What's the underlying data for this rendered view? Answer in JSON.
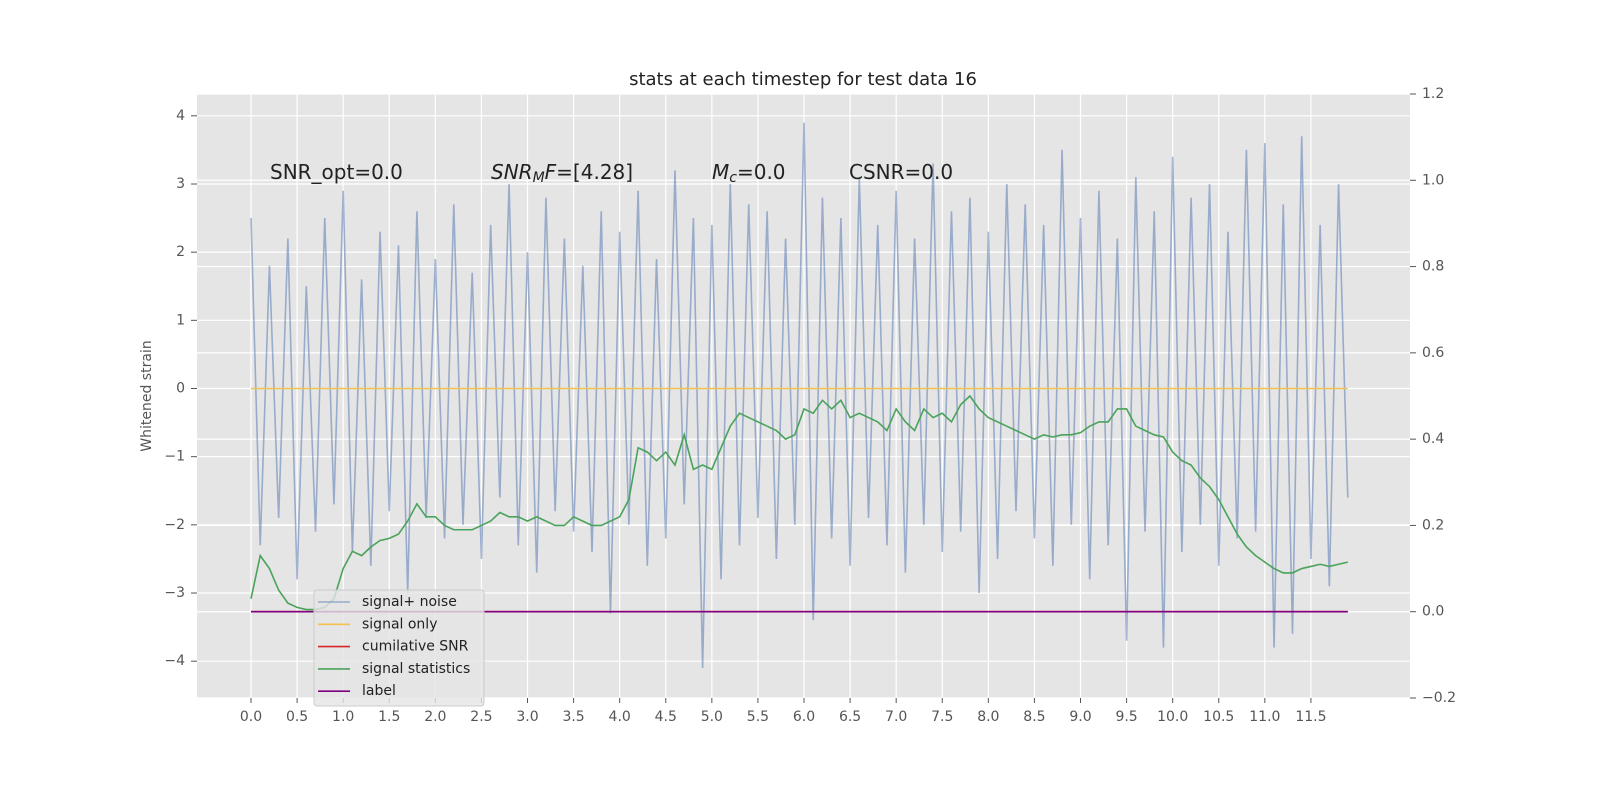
{
  "chart_data": {
    "type": "line",
    "title": "stats at each timestep for test data 16",
    "y_label": "Whitened strain",
    "grid": true,
    "legend_loc": "lower left",
    "annotations": [
      {
        "parts": [
          {
            "text": "SNR_opt=0.0",
            "style": "normal"
          }
        ]
      },
      {
        "parts": [
          {
            "text": "SNR",
            "style": "italic"
          },
          {
            "text": "M",
            "style": "sub"
          },
          {
            "text": "F",
            "style": "italic"
          },
          {
            "text": "=[4.28]",
            "style": "normal"
          }
        ]
      },
      {
        "parts": [
          {
            "text": "M",
            "style": "italic"
          },
          {
            "text": "c",
            "style": "sub"
          },
          {
            "text": "=0.0",
            "style": "normal"
          }
        ]
      },
      {
        "parts": [
          {
            "text": "CSNR=0.0",
            "style": "normal"
          }
        ]
      }
    ],
    "xlim": [
      -0.586,
      12.575
    ],
    "ylim": [
      -4.54,
      4.32
    ],
    "y2lim": [
      -0.2,
      1.2
    ],
    "xticks": [
      {
        "value": 0,
        "label": "0.0"
      },
      {
        "value": 0.5,
        "label": "0.5"
      },
      {
        "value": 1,
        "label": "1.0"
      },
      {
        "value": 1.5,
        "label": "1.5"
      },
      {
        "value": 2,
        "label": "2.0"
      },
      {
        "value": 2.5,
        "label": "2.5"
      },
      {
        "value": 3,
        "label": "3.0"
      },
      {
        "value": 3.5,
        "label": "3.5"
      },
      {
        "value": 4,
        "label": "4.0"
      },
      {
        "value": 4.5,
        "label": "4.5"
      },
      {
        "value": 5,
        "label": "5.0"
      },
      {
        "value": 5.5,
        "label": "5.5"
      },
      {
        "value": 6,
        "label": "6.0"
      },
      {
        "value": 6.5,
        "label": "6.5"
      },
      {
        "value": 7,
        "label": "7.0"
      },
      {
        "value": 7.5,
        "label": "7.5"
      },
      {
        "value": 8,
        "label": "8.0"
      },
      {
        "value": 8.5,
        "label": "8.5"
      },
      {
        "value": 9,
        "label": "9.0"
      },
      {
        "value": 9.5,
        "label": "9.5"
      },
      {
        "value": 10,
        "label": "10.0"
      },
      {
        "value": 10.5,
        "label": "10.5"
      },
      {
        "value": 11,
        "label": "11.0"
      },
      {
        "value": 11.5,
        "label": "11.5"
      }
    ],
    "yticks": [
      {
        "value": -4,
        "label": "−4"
      },
      {
        "value": -3,
        "label": "−3"
      },
      {
        "value": -2,
        "label": "−2"
      },
      {
        "value": -1,
        "label": "−1"
      },
      0,
      1,
      2,
      3,
      4
    ],
    "y2ticks": [
      {
        "value": -0.2,
        "label": "−0.2"
      },
      {
        "value": 0,
        "label": "0.0"
      },
      {
        "value": 0.2,
        "label": "0.2"
      },
      {
        "value": 0.4,
        "label": "0.4"
      },
      {
        "value": 0.6,
        "label": "0.6"
      },
      {
        "value": 0.8,
        "label": "0.8"
      },
      {
        "value": 1,
        "label": "1.0"
      },
      {
        "value": 1.2,
        "label": "1.2"
      }
    ],
    "x": [
      0,
      0.1,
      0.2,
      0.3,
      0.4,
      0.5,
      0.6,
      0.7,
      0.8,
      0.9,
      1,
      1.1,
      1.2,
      1.3,
      1.4,
      1.5,
      1.6,
      1.7,
      1.8,
      1.9,
      2,
      2.1,
      2.2,
      2.3,
      2.4,
      2.5,
      2.6,
      2.7,
      2.8,
      2.9,
      3,
      3.1,
      3.2,
      3.3,
      3.4,
      3.5,
      3.6,
      3.7,
      3.8,
      3.9,
      4,
      4.1,
      4.2,
      4.3,
      4.4,
      4.5,
      4.6,
      4.7,
      4.8,
      4.9,
      5,
      5.1,
      5.2,
      5.3,
      5.4,
      5.5,
      5.6,
      5.7,
      5.8,
      5.9,
      6,
      6.1,
      6.2,
      6.3,
      6.4,
      6.5,
      6.6,
      6.7,
      6.8,
      6.9,
      7,
      7.1,
      7.2,
      7.3,
      7.4,
      7.5,
      7.6,
      7.7,
      7.8,
      7.9,
      8,
      8.1,
      8.2,
      8.3,
      8.4,
      8.5,
      8.6,
      8.7,
      8.8,
      8.9,
      9,
      9.1,
      9.2,
      9.3,
      9.4,
      9.5,
      9.6,
      9.7,
      9.8,
      9.9,
      10,
      10.1,
      10.2,
      10.3,
      10.4,
      10.5,
      10.6,
      10.7,
      10.8,
      10.9,
      11,
      11.1,
      11.2,
      11.3,
      11.4,
      11.5,
      11.6,
      11.7,
      11.8,
      11.9
    ],
    "series": [
      {
        "name": "signal+ noise",
        "color": "#4c72b0",
        "opacity": 0.5,
        "values": [
          2.5,
          -2.3,
          1.8,
          -1.9,
          2.2,
          -2.8,
          1.5,
          -2.1,
          2.5,
          -1.7,
          2.9,
          -2.4,
          1.6,
          -2.6,
          2.3,
          -1.8,
          2.1,
          -3.0,
          2.6,
          -1.9,
          1.9,
          -2.2,
          2.7,
          -2.0,
          1.7,
          -2.5,
          2.4,
          -1.6,
          3.0,
          -2.3,
          2.0,
          -2.7,
          2.8,
          -1.8,
          2.2,
          -2.1,
          1.8,
          -2.4,
          2.6,
          -3.3,
          2.3,
          -2.0,
          2.9,
          -2.6,
          1.9,
          -2.2,
          3.2,
          -1.7,
          2.5,
          -4.1,
          2.4,
          -2.8,
          3.0,
          -2.3,
          2.7,
          -1.9,
          2.6,
          -2.5,
          2.2,
          -2.0,
          3.9,
          -3.4,
          2.8,
          -2.2,
          2.5,
          -2.6,
          3.1,
          -1.9,
          2.4,
          -2.3,
          2.9,
          -2.7,
          2.2,
          -2.0,
          3.3,
          -2.4,
          2.6,
          -2.1,
          2.8,
          -3.0,
          2.3,
          -2.5,
          3.0,
          -1.8,
          2.7,
          -2.2,
          2.4,
          -2.6,
          3.5,
          -2.0,
          2.5,
          -2.8,
          2.9,
          -2.3,
          2.2,
          -3.7,
          3.1,
          -2.1,
          2.6,
          -3.8,
          3.4,
          -2.4,
          2.8,
          -2.0,
          3.0,
          -2.6,
          2.3,
          -2.2,
          3.5,
          -2.1,
          3.6,
          -3.8,
          2.7,
          -3.6,
          3.7,
          -2.5,
          2.4,
          -2.9,
          3.0,
          -1.6
        ]
      },
      {
        "name": "signal only",
        "color": "#f2c14e",
        "values": [
          0,
          0,
          0,
          0,
          0,
          0,
          0,
          0,
          0,
          0,
          0,
          0,
          0,
          0,
          0,
          0,
          0,
          0,
          0,
          0,
          0,
          0,
          0,
          0,
          0,
          0,
          0,
          0,
          0,
          0,
          0,
          0,
          0,
          0,
          0,
          0,
          0,
          0,
          0,
          0,
          0,
          0,
          0,
          0,
          0,
          0,
          0,
          0,
          0,
          0,
          0,
          0,
          0,
          0,
          0,
          0,
          0,
          0,
          0,
          0,
          0,
          0,
          0,
          0,
          0,
          0,
          0,
          0,
          0,
          0,
          0,
          0,
          0,
          0,
          0,
          0,
          0,
          0,
          0,
          0,
          0,
          0,
          0,
          0,
          0,
          0,
          0,
          0,
          0,
          0,
          0,
          0,
          0,
          0,
          0,
          0,
          0,
          0,
          0,
          0,
          0,
          0,
          0,
          0,
          0,
          0,
          0,
          0,
          0,
          0,
          0,
          0,
          0,
          0,
          0,
          0,
          0,
          0,
          0,
          0
        ]
      },
      {
        "name": "cumilative SNR",
        "color": "#d62728",
        "axis": "y2",
        "values": [
          0,
          0,
          0,
          0,
          0,
          0,
          0,
          0,
          0,
          0,
          0,
          0,
          0,
          0,
          0,
          0,
          0,
          0,
          0,
          0,
          0,
          0,
          0,
          0,
          0,
          0,
          0,
          0,
          0,
          0,
          0,
          0,
          0,
          0,
          0,
          0,
          0,
          0,
          0,
          0,
          0,
          0,
          0,
          0,
          0,
          0,
          0,
          0,
          0,
          0,
          0,
          0,
          0,
          0,
          0,
          0,
          0,
          0,
          0,
          0,
          0,
          0,
          0,
          0,
          0,
          0,
          0,
          0,
          0,
          0,
          0,
          0,
          0,
          0,
          0,
          0,
          0,
          0,
          0,
          0,
          0,
          0,
          0,
          0,
          0,
          0,
          0,
          0,
          0,
          0,
          0,
          0,
          0,
          0,
          0,
          0,
          0,
          0,
          0,
          0,
          0,
          0,
          0,
          0,
          0,
          0,
          0,
          0,
          0,
          0,
          0,
          0,
          0,
          0,
          0,
          0,
          0,
          0,
          0,
          0
        ]
      },
      {
        "name": "signal statistics",
        "color": "#4aa35a",
        "axis": "y2",
        "values": [
          0.03,
          0.13,
          0.1,
          0.05,
          0.02,
          0.01,
          0.005,
          0.005,
          0.01,
          0.03,
          0.1,
          0.14,
          0.13,
          0.15,
          0.165,
          0.17,
          0.18,
          0.21,
          0.25,
          0.22,
          0.22,
          0.2,
          0.19,
          0.19,
          0.19,
          0.2,
          0.21,
          0.23,
          0.22,
          0.22,
          0.21,
          0.22,
          0.21,
          0.2,
          0.2,
          0.22,
          0.21,
          0.2,
          0.2,
          0.21,
          0.22,
          0.26,
          0.38,
          0.37,
          0.35,
          0.37,
          0.34,
          0.41,
          0.33,
          0.34,
          0.33,
          0.38,
          0.43,
          0.46,
          0.45,
          0.44,
          0.43,
          0.42,
          0.4,
          0.41,
          0.47,
          0.46,
          0.49,
          0.47,
          0.49,
          0.45,
          0.46,
          0.45,
          0.44,
          0.42,
          0.47,
          0.44,
          0.42,
          0.47,
          0.45,
          0.46,
          0.44,
          0.48,
          0.5,
          0.47,
          0.45,
          0.44,
          0.43,
          0.42,
          0.41,
          0.4,
          0.41,
          0.405,
          0.41,
          0.41,
          0.415,
          0.43,
          0.44,
          0.44,
          0.47,
          0.47,
          0.43,
          0.42,
          0.41,
          0.405,
          0.37,
          0.35,
          0.34,
          0.31,
          0.29,
          0.26,
          0.22,
          0.18,
          0.15,
          0.13,
          0.115,
          0.1,
          0.09,
          0.09,
          0.1,
          0.105,
          0.11,
          0.105,
          0.11,
          0.115
        ]
      },
      {
        "name": "label",
        "color": "#800080",
        "axis": "y2",
        "values": [
          0,
          0,
          0,
          0,
          0,
          0,
          0,
          0,
          0,
          0,
          0,
          0,
          0,
          0,
          0,
          0,
          0,
          0,
          0,
          0,
          0,
          0,
          0,
          0,
          0,
          0,
          0,
          0,
          0,
          0,
          0,
          0,
          0,
          0,
          0,
          0,
          0,
          0,
          0,
          0,
          0,
          0,
          0,
          0,
          0,
          0,
          0,
          0,
          0,
          0,
          0,
          0,
          0,
          0,
          0,
          0,
          0,
          0,
          0,
          0,
          0,
          0,
          0,
          0,
          0,
          0,
          0,
          0,
          0,
          0,
          0,
          0,
          0,
          0,
          0,
          0,
          0,
          0,
          0,
          0,
          0,
          0,
          0,
          0,
          0,
          0,
          0,
          0,
          0,
          0,
          0,
          0,
          0,
          0,
          0,
          0,
          0,
          0,
          0,
          0,
          0,
          0,
          0,
          0,
          0,
          0,
          0,
          0,
          0,
          0,
          0,
          0,
          0,
          0,
          0,
          0,
          0,
          0,
          0,
          0
        ]
      }
    ]
  }
}
